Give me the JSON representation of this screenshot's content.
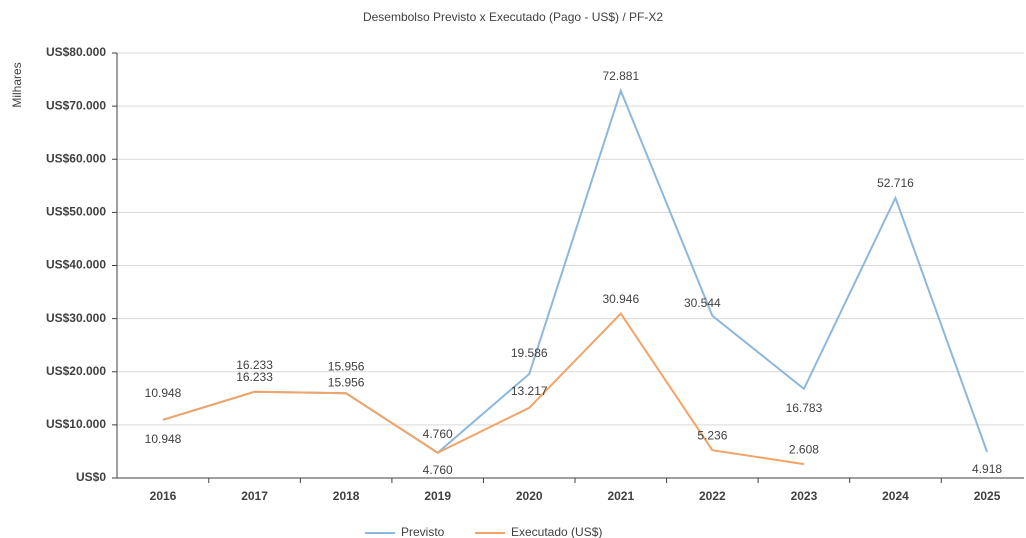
{
  "chart_data": {
    "type": "line",
    "title": "Desembolso Previsto x Executado (Pago - US$) / PF-X2",
    "y_label": "Milhares",
    "categories": [
      "2016",
      "2017",
      "2018",
      "2019",
      "2020",
      "2021",
      "2022",
      "2023",
      "2024",
      "2025"
    ],
    "series": [
      {
        "name": "Previsto",
        "color": "#8db8dd",
        "values": [
          10948,
          16233,
          15956,
          4760,
          19586,
          72881,
          30544,
          16783,
          52716,
          4918
        ],
        "value_labels": [
          "10.948",
          "16.233",
          "15.956",
          "4.760",
          "19.586",
          "72.881",
          "30.544",
          "16.783",
          "52.716",
          "4.918"
        ]
      },
      {
        "name": "Executado (US$)",
        "color": "#f0a468",
        "values": [
          10948,
          16233,
          15956,
          4760,
          13217,
          30946,
          5236,
          2608,
          null,
          null
        ],
        "value_labels": [
          "10.948",
          "16.233",
          "15.956",
          "4.760",
          "13.217",
          "30.946",
          "5.236",
          "2.608",
          null,
          null
        ]
      }
    ],
    "ylim": [
      0,
      80000
    ],
    "yticks": [
      {
        "value": 0,
        "label": "US$0"
      },
      {
        "value": 10000,
        "label": "US$10.000"
      },
      {
        "value": 20000,
        "label": "US$20.000"
      },
      {
        "value": 30000,
        "label": "US$30.000"
      },
      {
        "value": 40000,
        "label": "US$40.000"
      },
      {
        "value": 50000,
        "label": "US$50.000"
      },
      {
        "value": 60000,
        "label": "US$60.000"
      },
      {
        "value": 70000,
        "label": "US$70.000"
      },
      {
        "value": 80000,
        "label": "US$80.000"
      }
    ],
    "grid": true,
    "legend": "bottom"
  }
}
